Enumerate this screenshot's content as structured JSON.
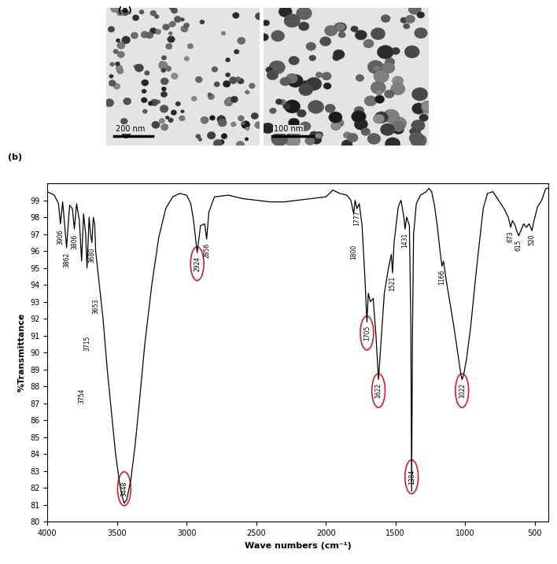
{
  "images": {
    "panel_label": "(a)",
    "scale_bars": [
      "200 nm",
      "100 nm"
    ]
  },
  "chart_data": {
    "type": "line",
    "panel_label": "(b)",
    "x_label": "Wave numbers (cm⁻¹)",
    "y_label": "%Transmittance",
    "xlim": [
      4000,
      400
    ],
    "xticks": [
      4000,
      3500,
      3000,
      2500,
      2000,
      1500,
      1000,
      500
    ],
    "ylim": [
      80,
      100
    ],
    "yticks": [
      80,
      81,
      82,
      83,
      84,
      85,
      86,
      87,
      88,
      89,
      90,
      91,
      92,
      93,
      94,
      95,
      96,
      97,
      98,
      99
    ],
    "grid": false,
    "color": "#000000",
    "x": [
      4000,
      3950,
      3920,
      3906,
      3890,
      3862,
      3840,
      3820,
      3806,
      3790,
      3770,
      3754,
      3740,
      3725,
      3715,
      3700,
      3690,
      3680,
      3670,
      3660,
      3653,
      3640,
      3600,
      3570,
      3540,
      3510,
      3480,
      3460,
      3448,
      3430,
      3400,
      3370,
      3340,
      3300,
      3250,
      3200,
      3150,
      3100,
      3050,
      3000,
      2970,
      2950,
      2924,
      2900,
      2870,
      2856,
      2840,
      2800,
      2700,
      2600,
      2500,
      2400,
      2300,
      2200,
      2100,
      2000,
      1950,
      1900,
      1850,
      1820,
      1800,
      1790,
      1777,
      1760,
      1740,
      1720,
      1705,
      1695,
      1680,
      1660,
      1640,
      1622,
      1605,
      1580,
      1550,
      1530,
      1521,
      1510,
      1480,
      1460,
      1440,
      1431,
      1420,
      1400,
      1390,
      1384,
      1378,
      1370,
      1350,
      1320,
      1280,
      1260,
      1240,
      1220,
      1200,
      1180,
      1166,
      1155,
      1140,
      1110,
      1080,
      1050,
      1030,
      1022,
      1010,
      990,
      960,
      930,
      900,
      870,
      840,
      800,
      760,
      720,
      690,
      673,
      660,
      640,
      630,
      615,
      600,
      580,
      560,
      540,
      520,
      505,
      480,
      450,
      420,
      400
    ],
    "values": [
      99.5,
      99.3,
      98.8,
      97.6,
      98.9,
      96.2,
      98.7,
      98.5,
      97.3,
      98.8,
      97.8,
      95.4,
      98.2,
      97.0,
      95.0,
      98.0,
      97.0,
      96.5,
      98.0,
      97.6,
      96.0,
      95.0,
      92.0,
      89.0,
      86.5,
      84.0,
      82.2,
      81.4,
      81.1,
      81.3,
      82.5,
      84.5,
      87.0,
      90.5,
      94.0,
      96.8,
      98.5,
      99.2,
      99.4,
      99.3,
      98.8,
      97.8,
      95.9,
      97.5,
      97.6,
      96.7,
      98.3,
      99.2,
      99.3,
      99.1,
      99.0,
      98.9,
      98.9,
      99.0,
      99.1,
      99.2,
      99.6,
      99.4,
      99.3,
      99.0,
      98.2,
      99.0,
      98.5,
      98.8,
      97.5,
      94.5,
      91.8,
      93.5,
      93.0,
      93.2,
      91.0,
      88.4,
      90.5,
      93.5,
      95.0,
      95.8,
      94.7,
      96.5,
      98.6,
      99.0,
      98.0,
      97.3,
      98.0,
      97.5,
      92.0,
      81.8,
      91.0,
      97.0,
      98.8,
      99.3,
      99.5,
      99.7,
      99.5,
      98.7,
      97.5,
      96.0,
      95.1,
      95.4,
      94.5,
      93.0,
      91.5,
      89.8,
      88.7,
      88.4,
      88.7,
      89.6,
      91.5,
      94.0,
      96.3,
      98.5,
      99.4,
      99.5,
      99.0,
      98.5,
      98.0,
      97.4,
      97.8,
      97.5,
      97.2,
      96.9,
      97.2,
      97.6,
      97.4,
      97.6,
      97.2,
      97.8,
      98.6,
      99.0,
      99.7,
      99.7
    ],
    "peak_labels": [
      3906,
      3862,
      3806,
      3754,
      3715,
      3680,
      3653,
      3448,
      2924,
      2856,
      1800,
      1777,
      1705,
      1622,
      1521,
      1431,
      1384,
      1166,
      1022,
      673,
      615,
      520
    ],
    "circled_peaks": [
      3448,
      2924,
      1705,
      1622,
      1384,
      1022
    ]
  }
}
